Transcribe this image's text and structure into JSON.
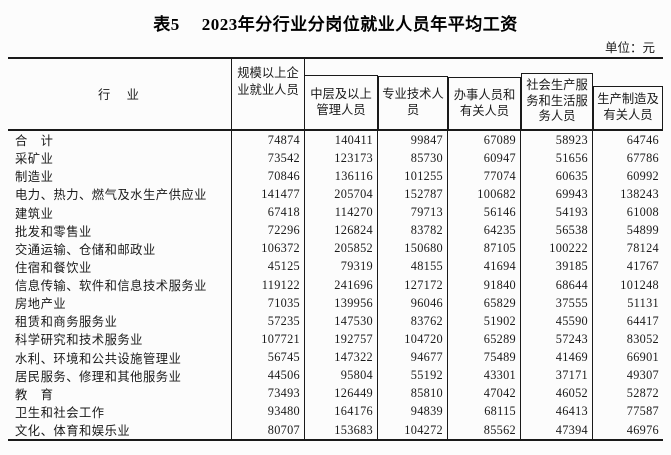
{
  "title": {
    "prefix": "表5",
    "text": "2023年分行业分岗位就业人员年平均工资"
  },
  "unit_label": "单位：元",
  "table": {
    "industry_header": "行　业",
    "columns": [
      "规模以上企\n业就业人员",
      "中层及以上\n管理人员",
      "专业技术人\n员",
      "办事人员和\n有关人员",
      "社会生产服\n务和生活服\n务人员",
      "生产制造及\n有关人员"
    ],
    "rows": [
      {
        "name": "合　计",
        "values": [
          74874,
          140411,
          99847,
          67089,
          58923,
          64746
        ]
      },
      {
        "name": "采矿业",
        "values": [
          73542,
          123173,
          85730,
          60947,
          51656,
          67786
        ]
      },
      {
        "name": "制造业",
        "values": [
          70846,
          136116,
          101255,
          77074,
          60635,
          60992
        ]
      },
      {
        "name": "电力、热力、燃气及水生产供应业",
        "values": [
          141477,
          205704,
          152787,
          100682,
          69943,
          138243
        ]
      },
      {
        "name": "建筑业",
        "values": [
          67418,
          114270,
          79713,
          56146,
          54193,
          61008
        ]
      },
      {
        "name": "批发和零售业",
        "values": [
          72296,
          126824,
          83782,
          64235,
          56538,
          54899
        ]
      },
      {
        "name": "交通运输、仓储和邮政业",
        "values": [
          106372,
          205852,
          150680,
          87105,
          100222,
          78124
        ]
      },
      {
        "name": "住宿和餐饮业",
        "values": [
          45125,
          79319,
          48155,
          41694,
          39185,
          41767
        ]
      },
      {
        "name": "信息传输、软件和信息技术服务业",
        "values": [
          119122,
          241696,
          127172,
          91840,
          68644,
          101248
        ]
      },
      {
        "name": "房地产业",
        "values": [
          71035,
          139956,
          96046,
          65829,
          37555,
          51131
        ]
      },
      {
        "name": "租赁和商务服务业",
        "values": [
          57235,
          147530,
          83762,
          51902,
          45590,
          64417
        ]
      },
      {
        "name": "科学研究和技术服务业",
        "values": [
          107721,
          192757,
          104720,
          65289,
          57243,
          83052
        ]
      },
      {
        "name": "水利、环境和公共设施管理业",
        "values": [
          56745,
          147322,
          94677,
          75489,
          41469,
          66901
        ]
      },
      {
        "name": "居民服务、修理和其他服务业",
        "values": [
          44506,
          95804,
          55192,
          43301,
          37171,
          49307
        ]
      },
      {
        "name": "教　育",
        "values": [
          73493,
          126449,
          85810,
          47042,
          46052,
          52872
        ]
      },
      {
        "name": "卫生和社会工作",
        "values": [
          93480,
          164176,
          94839,
          68115,
          46413,
          77587
        ]
      },
      {
        "name": "文化、体育和娱乐业",
        "values": [
          80707,
          153683,
          104272,
          85562,
          47394,
          46976
        ]
      }
    ]
  }
}
